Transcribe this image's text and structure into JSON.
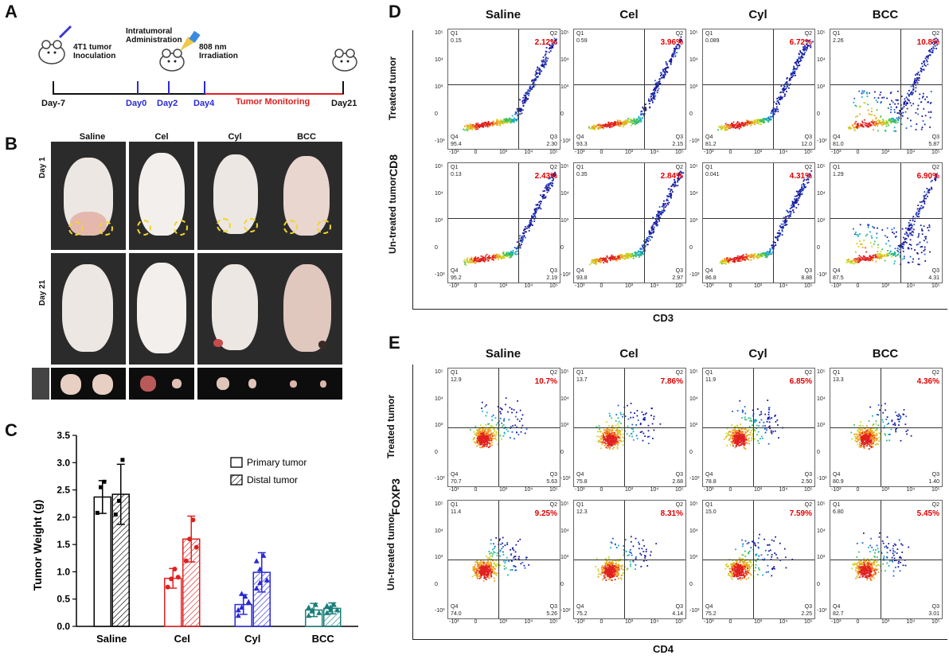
{
  "panels": {
    "A": "A",
    "B": "B",
    "C": "C",
    "D": "D",
    "E": "E"
  },
  "timeline": {
    "event_inoculation": "4T1 tumor\nInoculation",
    "event_administration": "Intratumoral\nAdministration",
    "event_irradiation": "808 nm\nIrradiation",
    "monitoring": "Tumor Monitoring",
    "days": [
      "Day-7",
      "Day0",
      "Day2",
      "Day4",
      "Day21"
    ],
    "colors": {
      "black": "#111111",
      "blue": "#2a2ad6",
      "red": "#e02020"
    }
  },
  "photos": {
    "groups": [
      "Saline",
      "Cel",
      "Cyl",
      "BCC"
    ],
    "rows": [
      "Day 1",
      "Day 21"
    ]
  },
  "chart_data": {
    "type": "bar",
    "title": "",
    "xlabel": "",
    "ylabel": "Tumor Weight (g)",
    "ylim": [
      0,
      3.5
    ],
    "yticks": [
      "0.0",
      "0.5",
      "1.0",
      "1.5",
      "2.0",
      "2.5",
      "3.0",
      "3.5"
    ],
    "categories": [
      "Saline",
      "Cel",
      "Cyl",
      "BCC"
    ],
    "category_colors": [
      "#000000",
      "#e02020",
      "#2a2ad6",
      "#1a7f7a"
    ],
    "series": [
      {
        "name": "Primary tumor",
        "values": [
          2.37,
          0.88,
          0.4,
          0.3
        ],
        "errors": [
          0.3,
          0.18,
          0.18,
          0.12
        ],
        "points": [
          [
            2.08,
            2.55,
            2.65
          ],
          [
            0.72,
            0.87,
            1.05,
            0.9
          ],
          [
            0.2,
            0.35,
            0.55,
            0.45,
            0.3,
            0.6
          ],
          [
            0.2,
            0.3,
            0.4,
            0.25,
            0.35,
            0.28
          ]
        ]
      },
      {
        "name": "Distal tumor",
        "values": [
          2.42,
          1.6,
          0.99,
          0.33
        ],
        "errors": [
          0.55,
          0.42,
          0.36,
          0.1
        ],
        "points": [
          [
            2.05,
            2.3,
            3.05
          ],
          [
            1.2,
            1.6,
            1.95,
            1.45
          ],
          [
            0.7,
            1.05,
            1.3,
            0.85,
            1.2,
            0.8
          ],
          [
            0.25,
            0.35,
            0.4,
            0.3,
            0.38,
            0.3
          ]
        ]
      }
    ],
    "legend_position": "top-right"
  },
  "flow_D": {
    "columns": [
      "Saline",
      "Cel",
      "Cyl",
      "BCC"
    ],
    "rows": [
      "Treated tumor",
      "Un-treated tumor"
    ],
    "ylabel": "CD8",
    "xlabel": "CD3",
    "q2": [
      [
        "2.12%",
        "3.96%",
        "6.72%",
        "10.8%"
      ],
      [
        "2.43%",
        "2.84%",
        "4.31%",
        "6.90%"
      ]
    ],
    "q1": [
      [
        "0.15",
        "0.59",
        "0.089",
        "2.26"
      ],
      [
        "0.13",
        "0.35",
        "0.041",
        "1.29"
      ]
    ],
    "q4": [
      [
        "95.4",
        "93.3",
        "81.2",
        "81.0"
      ],
      [
        "95.2",
        "93.8",
        "86.8",
        "87.5"
      ]
    ],
    "q3": [
      [
        "2.30",
        "2.15",
        "12.0",
        "5.87"
      ],
      [
        "2.19",
        "2.97",
        "8.88",
        "4.31"
      ]
    ]
  },
  "flow_E": {
    "columns": [
      "Saline",
      "Cel",
      "Cyl",
      "BCC"
    ],
    "rows": [
      "Treated tumor",
      "Un-treated tumor"
    ],
    "ylabel": "FOXP3",
    "xlabel": "CD4",
    "q2": [
      [
        "10.7%",
        "7.86%",
        "6.85%",
        "4.36%"
      ],
      [
        "9.25%",
        "8.31%",
        "7.59%",
        "5.45%"
      ]
    ],
    "q1": [
      [
        "12.9",
        "13.7",
        "11.9",
        "13.3"
      ],
      [
        "11.4",
        "12.3",
        "15.0",
        "6.80"
      ]
    ],
    "q4": [
      [
        "70.7",
        "75.8",
        "78.8",
        "80.9"
      ],
      [
        "74.0",
        "75.2",
        "75.2",
        "82.7"
      ]
    ],
    "q3": [
      [
        "5.63",
        "2.68",
        "2.50",
        "1.40"
      ],
      [
        "5.26",
        "4.14",
        "2.25",
        "3.01"
      ]
    ]
  },
  "quadrant_labels": {
    "q1": "Q1",
    "q2": "Q2",
    "q3": "Q3",
    "q4": "Q4"
  },
  "flow_ticks": {
    "x": [
      "-10³",
      "0",
      "10³",
      "10⁴",
      "10⁵"
    ],
    "y": [
      "10⁵",
      "10⁴",
      "10³",
      "0",
      "-10³"
    ]
  }
}
